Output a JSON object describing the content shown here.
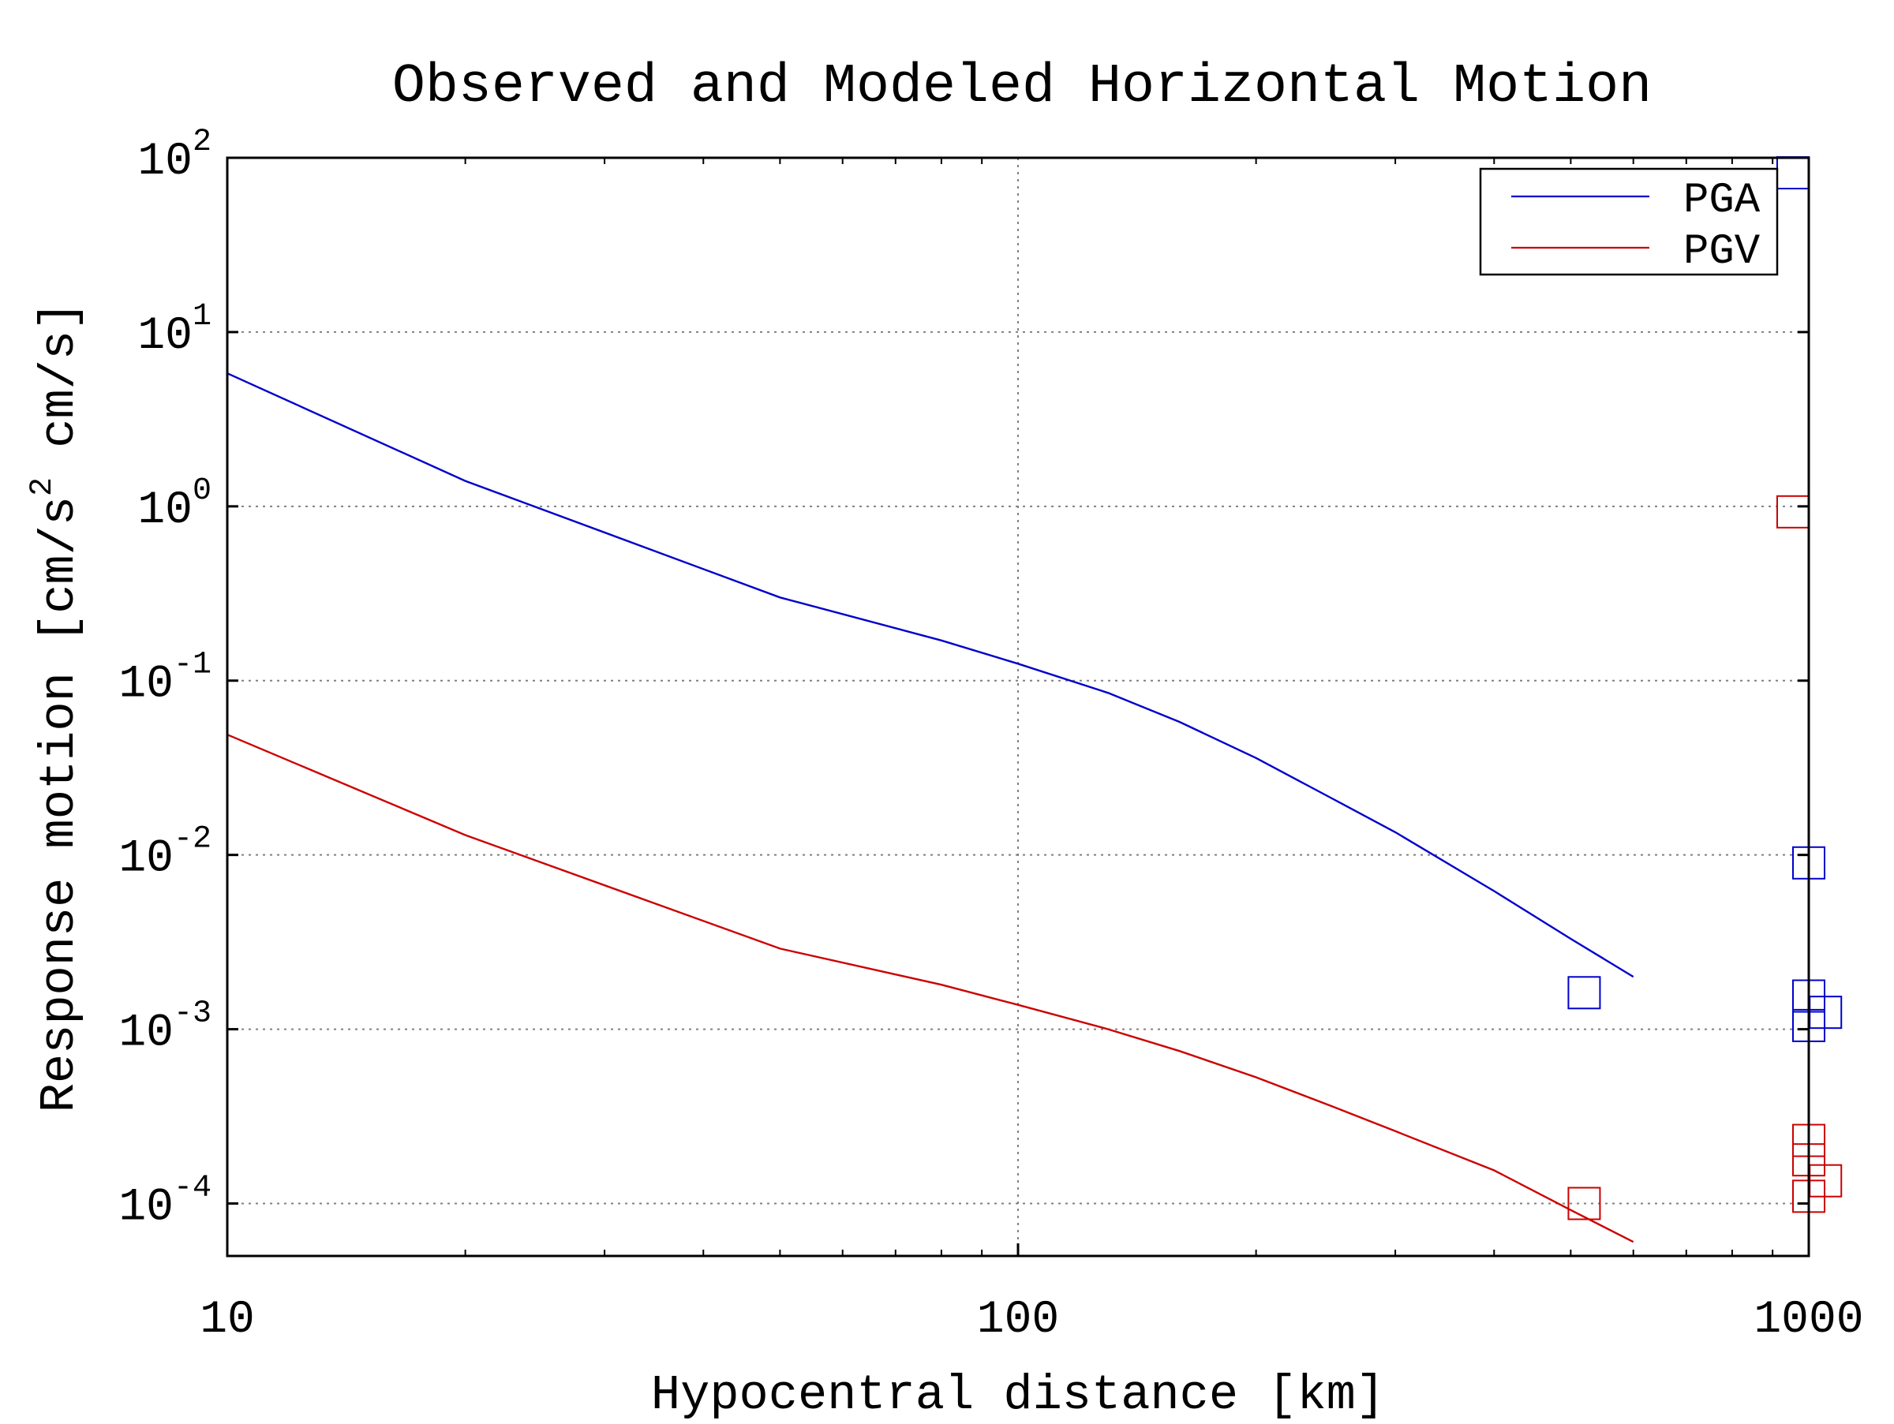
{
  "chart_data": {
    "type": "line",
    "title": "Observed and Modeled Horizontal Motion",
    "xlabel": "Hypocentral distance [km]",
    "ylabel": {
      "prefix": "Response motion [cm/s",
      "superscript": "2",
      "suffix": " cm/s]"
    },
    "x_scale": "log",
    "y_scale": "log",
    "xlim": [
      10,
      1000
    ],
    "ylim": [
      5e-05,
      100
    ],
    "x_ticks": [
      {
        "value": 10,
        "label": "10"
      },
      {
        "value": 100,
        "label": "100"
      },
      {
        "value": 1000,
        "label": "1000"
      }
    ],
    "y_ticks": [
      {
        "value": 100,
        "base": "10",
        "exp": "2"
      },
      {
        "value": 10,
        "base": "10",
        "exp": "1"
      },
      {
        "value": 1,
        "base": "10",
        "exp": "0"
      },
      {
        "value": 0.1,
        "base": "10",
        "exp": "-1"
      },
      {
        "value": 0.01,
        "base": "10",
        "exp": "-2"
      },
      {
        "value": 0.001,
        "base": "10",
        "exp": "-3"
      },
      {
        "value": 0.0001,
        "base": "10",
        "exp": "-4"
      }
    ],
    "grid": true,
    "legend_position": "top-right",
    "series": [
      {
        "name": "PGA",
        "color": "#0000cc",
        "x": [
          10,
          20,
          50,
          80,
          100,
          130,
          160,
          200,
          250,
          300,
          400,
          500,
          600
        ],
        "y": [
          5.8,
          1.4,
          0.3,
          0.17,
          0.125,
          0.085,
          0.058,
          0.036,
          0.021,
          0.0135,
          0.0062,
          0.0033,
          0.002
        ]
      },
      {
        "name": "PGV",
        "color": "#cc0000",
        "x": [
          10,
          20,
          50,
          80,
          100,
          130,
          160,
          200,
          250,
          300,
          400,
          500,
          600
        ],
        "y": [
          0.049,
          0.013,
          0.0029,
          0.0018,
          0.00138,
          0.001,
          0.00075,
          0.00053,
          0.00036,
          0.00026,
          0.000155,
          9.17e-05,
          6.02e-05
        ]
      }
    ],
    "observed": [
      {
        "series": "PGA",
        "color": "#0000cc",
        "points": [
          {
            "x": 955,
            "y": 82
          },
          {
            "x": 1000,
            "y": 0.009
          },
          {
            "x": 1000,
            "y": 0.00155
          },
          {
            "x": 1000,
            "y": 0.00105
          },
          {
            "x": 1050,
            "y": 0.00125
          },
          {
            "x": 520,
            "y": 0.00162
          }
        ]
      },
      {
        "series": "PGV",
        "color": "#cc0000",
        "points": [
          {
            "x": 955,
            "y": 0.93
          },
          {
            "x": 1000,
            "y": 0.00023
          },
          {
            "x": 1000,
            "y": 0.000178
          },
          {
            "x": 1000,
            "y": 0.00011
          },
          {
            "x": 1050,
            "y": 0.000135
          },
          {
            "x": 520,
            "y": 0.0001
          }
        ]
      }
    ]
  }
}
